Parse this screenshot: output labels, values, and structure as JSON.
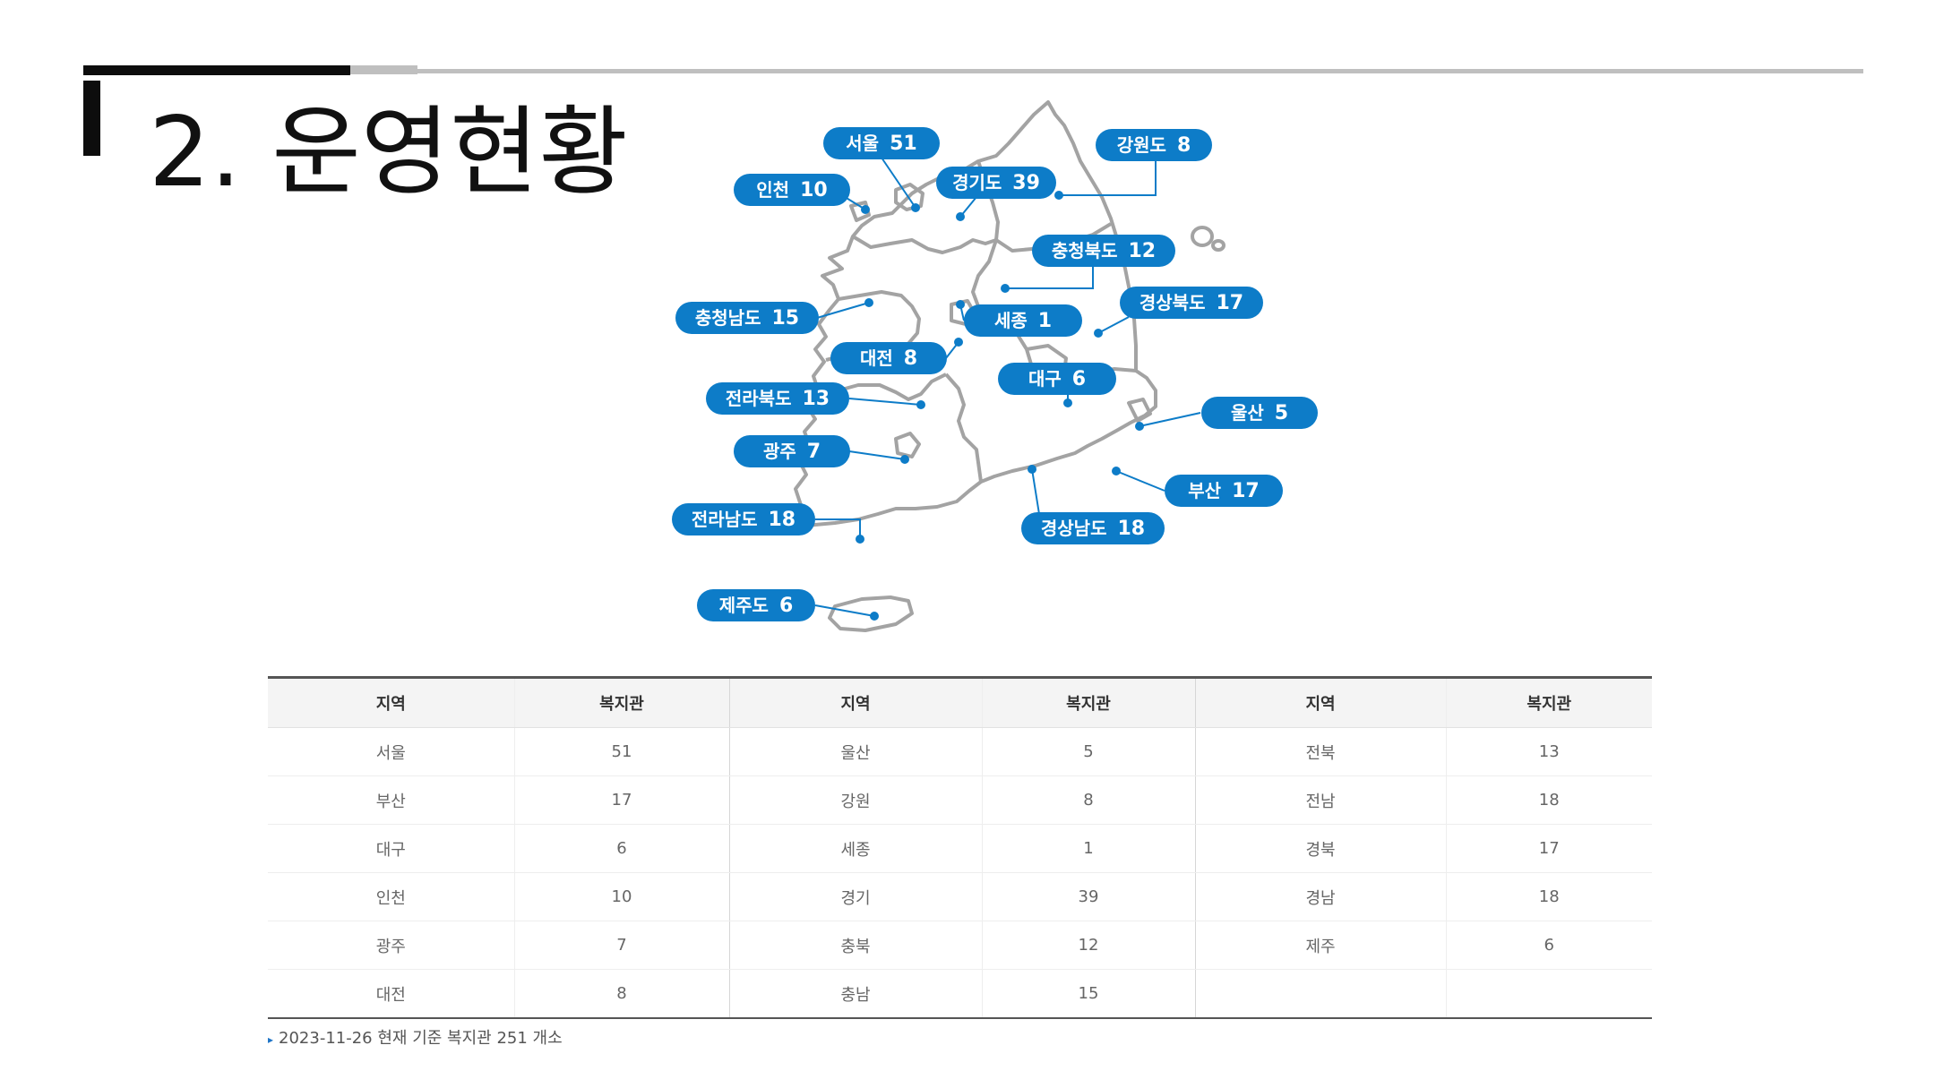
{
  "title": "2. 운영현황",
  "colors": {
    "tag": "#0d7cc8",
    "map_stroke": "#a3a3a3",
    "dot": "#0d7cc8"
  },
  "map_labels": [
    {
      "name": "서울",
      "value": "51"
    },
    {
      "name": "인천",
      "value": "10"
    },
    {
      "name": "경기도",
      "value": "39"
    },
    {
      "name": "강원도",
      "value": "8"
    },
    {
      "name": "충청북도",
      "value": "12"
    },
    {
      "name": "충청남도",
      "value": "15"
    },
    {
      "name": "세종",
      "value": "1"
    },
    {
      "name": "경상북도",
      "value": "17"
    },
    {
      "name": "대전",
      "value": "8"
    },
    {
      "name": "대구",
      "value": "6"
    },
    {
      "name": "전라북도",
      "value": "13"
    },
    {
      "name": "울산",
      "value": "5"
    },
    {
      "name": "광주",
      "value": "7"
    },
    {
      "name": "부산",
      "value": "17"
    },
    {
      "name": "전라남도",
      "value": "18"
    },
    {
      "name": "경상남도",
      "value": "18"
    },
    {
      "name": "제주도",
      "value": "6"
    }
  ],
  "table": {
    "headers": [
      "지역",
      "복지관",
      "지역",
      "복지관",
      "지역",
      "복지관"
    ],
    "rows": [
      [
        "서울",
        "51",
        "울산",
        "5",
        "전북",
        "13"
      ],
      [
        "부산",
        "17",
        "강원",
        "8",
        "전남",
        "18"
      ],
      [
        "대구",
        "6",
        "세종",
        "1",
        "경북",
        "17"
      ],
      [
        "인천",
        "10",
        "경기",
        "39",
        "경남",
        "18"
      ],
      [
        "광주",
        "7",
        "충북",
        "12",
        "제주",
        "6"
      ],
      [
        "대전",
        "8",
        "충남",
        "15",
        "",
        ""
      ]
    ]
  },
  "footnote": "2023-11-26 현재 기준 복지관 251 개소"
}
